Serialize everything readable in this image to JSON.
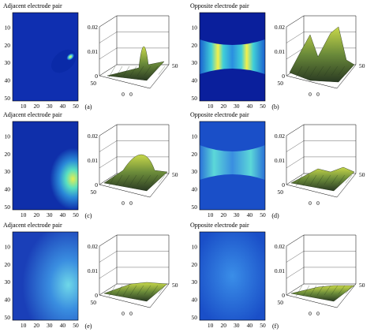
{
  "panels": [
    {
      "id": "a",
      "title": "Adjacent electrode pair",
      "caption": "(a)",
      "zmax_label": "0.02",
      "zmid_label": "0.01",
      "zmin_label": "0",
      "side": "left",
      "field": "adj_a",
      "surface": "peak_a"
    },
    {
      "id": "b",
      "title": "Opposite electrode pair",
      "caption": "(b)",
      "zmax_label": "0.02",
      "zmid_label": "0.01",
      "zmin_label": "0",
      "side": "right",
      "field": "opp_b",
      "surface": "peak_b"
    },
    {
      "id": "c",
      "title": "Adjacent electrode pair",
      "caption": "(c)",
      "zmax_label": "0.02",
      "zmid_label": "0.01",
      "zmin_label": "0",
      "side": "left",
      "field": "adj_c",
      "surface": "peak_c"
    },
    {
      "id": "d",
      "title": "Opposite electrode pair",
      "caption": "(d)",
      "zmax_label": "0.02",
      "zmid_label": "0.01",
      "zmin_label": "0",
      "side": "right",
      "field": "opp_d",
      "surface": "peak_d"
    },
    {
      "id": "e",
      "title": "Adjacent electrode pair",
      "caption": "(e)",
      "zmax_label": "0.02",
      "zmid_label": "0.01",
      "zmin_label": "0",
      "side": "left",
      "field": "adj_e",
      "surface": "peak_e"
    },
    {
      "id": "f",
      "title": "Opposite electrode pair",
      "caption": "(f)",
      "zmax_label": "0.02",
      "zmid_label": "0.01",
      "zmin_label": "0",
      "side": "right",
      "field": "opp_f",
      "surface": "peak_f"
    }
  ],
  "y_ticks": [
    "10",
    "20",
    "30",
    "40",
    "50"
  ],
  "x_ticks": [
    "10",
    "20",
    "30",
    "40",
    "50"
  ],
  "surf_ticks": {
    "left_depth": "50",
    "front_a": "0",
    "front_b": "0",
    "back": "50"
  },
  "colors": {
    "deep_blue": "#0a1f9c",
    "mid_blue": "#2a5fd0",
    "cyan": "#3fd6e0",
    "yellow": "#f4f04a",
    "surface": "#3a5a2a"
  }
}
